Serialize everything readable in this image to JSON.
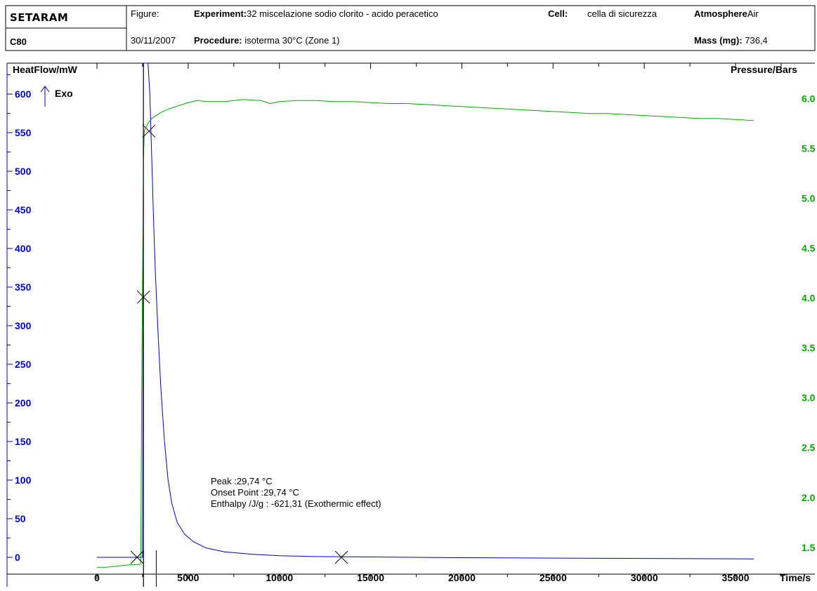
{
  "header": {
    "brand": "SETARAM",
    "instrument": "C80",
    "figure_label": "Figure:",
    "date": "30/11/2007",
    "experiment_label": "Experiment:",
    "experiment_value": "32 miscelazione sodio clorito - acido peracetico",
    "procedure_label": "Procedure:",
    "procedure_value": "isoterma 30°C (Zone 1)",
    "cell_label": "Cell:",
    "cell_value": "cella di sicurezza",
    "atmosphere_label": "Atmosphere",
    "atmosphere_value": "Air",
    "mass_label": "Mass (mg):",
    "mass_value": "736,4"
  },
  "colors": {
    "heatflow": "#0000cc",
    "pressure": "#00aa00",
    "marker": "#000000"
  },
  "chart_data": {
    "type": "line",
    "xlabel": "Time/s",
    "ylabel_left": "HeatFlow/mW",
    "ylabel_right": "Pressure/Bars",
    "exo_label": "Exo",
    "xlim": [
      0,
      36000
    ],
    "ylim_left": [
      0,
      620
    ],
    "ylim_right": [
      1.4,
      6.2
    ],
    "x_ticks": [
      "0",
      "5000",
      "10000",
      "15000",
      "20000",
      "25000",
      "30000",
      "35000"
    ],
    "x_tick_values": [
      0,
      5000,
      10000,
      15000,
      20000,
      25000,
      30000,
      35000
    ],
    "y_ticks_left": [
      "0",
      "50",
      "100",
      "150",
      "200",
      "250",
      "300",
      "350",
      "400",
      "450",
      "500",
      "550",
      "600"
    ],
    "y_tick_values_left": [
      0,
      50,
      100,
      150,
      200,
      250,
      300,
      350,
      400,
      450,
      500,
      550,
      600
    ],
    "y_ticks_right": [
      "1.5",
      "2.0",
      "2.5",
      "3.0",
      "3.5",
      "4.0",
      "4.5",
      "5.0",
      "5.5",
      "6.0"
    ],
    "y_tick_values_right": [
      1.5,
      2.0,
      2.5,
      3.0,
      3.5,
      4.0,
      4.5,
      5.0,
      5.5,
      6.0
    ],
    "series": [
      {
        "name": "HeatFlow/mW",
        "axis": "left",
        "x": [
          0,
          2400,
          2500,
          2550,
          2600,
          2650,
          2800,
          2900,
          3000,
          3100,
          3200,
          3350,
          3500,
          3700,
          3900,
          4100,
          4400,
          4800,
          5300,
          6000,
          7000,
          8500,
          10000,
          12000,
          15000,
          20000,
          25000,
          30000,
          36000
        ],
        "y": [
          0,
          0,
          0,
          650,
          650,
          650,
          650,
          600,
          520,
          440,
          370,
          290,
          220,
          150,
          100,
          70,
          45,
          30,
          20,
          12,
          7,
          4,
          2,
          1,
          0.5,
          -0.5,
          -1,
          -1.5,
          -2
        ]
      },
      {
        "name": "Pressure/Bars",
        "axis": "right",
        "x": [
          0,
          500,
          1000,
          1500,
          2400,
          2450,
          2500,
          2550,
          2600,
          2800,
          3000,
          3500,
          4000,
          4500,
          5000,
          5500,
          6000,
          7000,
          8000,
          9000,
          9500,
          10000,
          11000,
          12000,
          13000,
          14000,
          15000,
          16000,
          17000,
          18000,
          19000,
          20000,
          21000,
          22000,
          23000,
          24000,
          25000,
          26000,
          27000,
          28000,
          29000,
          30000,
          31000,
          32000,
          33000,
          34000,
          35000,
          36000
        ],
        "y": [
          1.3,
          1.3,
          1.31,
          1.32,
          1.33,
          3.0,
          4.2,
          5.4,
          5.68,
          5.75,
          5.8,
          5.86,
          5.9,
          5.93,
          5.96,
          5.98,
          5.97,
          5.97,
          5.99,
          5.98,
          5.95,
          5.97,
          5.98,
          5.98,
          5.97,
          5.97,
          5.96,
          5.95,
          5.95,
          5.94,
          5.93,
          5.92,
          5.91,
          5.9,
          5.89,
          5.88,
          5.87,
          5.86,
          5.85,
          5.85,
          5.84,
          5.83,
          5.82,
          5.81,
          5.8,
          5.8,
          5.79,
          5.78
        ]
      }
    ],
    "markers": [
      {
        "x": 2200,
        "y": 0
      },
      {
        "x": 2550,
        "y": 337
      },
      {
        "x": 2850,
        "y": 552
      },
      {
        "x": 13400,
        "y": 0
      }
    ],
    "vertical_lines": [
      2550,
      3250
    ],
    "annotations": [
      "Peak :29,74 °C",
      "Onset Point :29,74 °C",
      "Enthalpy /J/g : -621,31 (Exothermic effect)"
    ]
  }
}
